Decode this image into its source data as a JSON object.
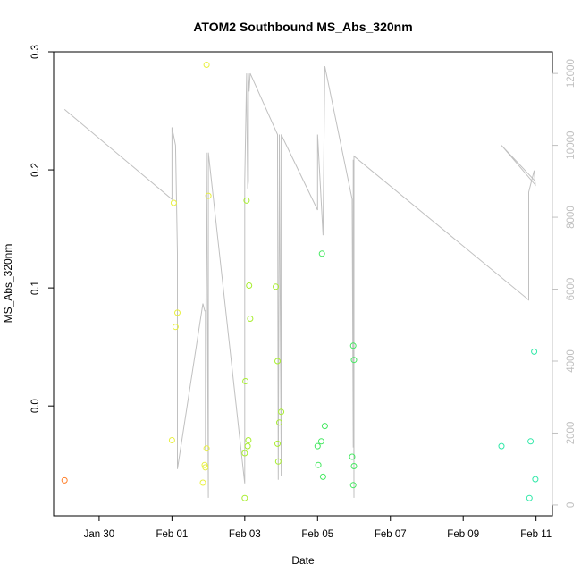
{
  "chart_data": {
    "type": "scatter",
    "title": "ATOM2 Southbound MS_Abs_320nm",
    "xlabel": "Date",
    "ylabel": "MS_Abs_320nm",
    "x_ticks": [
      "Jan 30",
      "Feb 01",
      "Feb 03",
      "Feb 05",
      "Feb 07",
      "Feb 09",
      "Feb 11"
    ],
    "x_tick_values": [
      0,
      2,
      4,
      6,
      8,
      10,
      12
    ],
    "xlim": [
      -1.25,
      12.45
    ],
    "y_ticks": [
      "0.0",
      "0.1",
      "0.2",
      "0.3"
    ],
    "y_tick_values": [
      0.0,
      0.1,
      0.2,
      0.3
    ],
    "ylim": [
      -0.093,
      0.3
    ],
    "y2_ticks": [
      "0",
      "2000",
      "4000",
      "6000",
      "8000",
      "10000",
      "12000"
    ],
    "y2_tick_values": [
      0,
      2000,
      4000,
      6000,
      8000,
      10000,
      12000
    ],
    "y2lim": [
      -300,
      12600
    ],
    "grid": false,
    "legend": "none",
    "points": [
      {
        "x": -0.95,
        "y": -0.063,
        "color": "#ff7f2a"
      },
      {
        "x": 2.0,
        "y": -0.029,
        "color": "#e8f040"
      },
      {
        "x": 2.05,
        "y": 0.172,
        "color": "#e8f040"
      },
      {
        "x": 2.1,
        "y": 0.067,
        "color": "#e8f040"
      },
      {
        "x": 2.15,
        "y": 0.079,
        "color": "#e8f040"
      },
      {
        "x": 2.85,
        "y": -0.065,
        "color": "#e8f040"
      },
      {
        "x": 2.9,
        "y": -0.05,
        "color": "#e8f040"
      },
      {
        "x": 2.92,
        "y": -0.052,
        "color": "#e8f040"
      },
      {
        "x": 2.95,
        "y": -0.036,
        "color": "#e8f040"
      },
      {
        "x": 2.95,
        "y": 0.289,
        "color": "#e8f040"
      },
      {
        "x": 3.0,
        "y": 0.178,
        "color": "#e8f040"
      },
      {
        "x": 4.0,
        "y": -0.078,
        "color": "#a8ee30"
      },
      {
        "x": 4.0,
        "y": -0.04,
        "color": "#a8ee30"
      },
      {
        "x": 4.02,
        "y": 0.021,
        "color": "#a8ee30"
      },
      {
        "x": 4.05,
        "y": 0.174,
        "color": "#a8ee30"
      },
      {
        "x": 4.08,
        "y": -0.034,
        "color": "#a8ee30"
      },
      {
        "x": 4.1,
        "y": -0.029,
        "color": "#a8ee30"
      },
      {
        "x": 4.12,
        "y": 0.102,
        "color": "#a8ee30"
      },
      {
        "x": 4.15,
        "y": 0.074,
        "color": "#a8ee30"
      },
      {
        "x": 4.85,
        "y": 0.101,
        "color": "#a8ee30"
      },
      {
        "x": 4.9,
        "y": -0.032,
        "color": "#a8ee30"
      },
      {
        "x": 4.9,
        "y": 0.038,
        "color": "#a8ee30"
      },
      {
        "x": 4.92,
        "y": -0.047,
        "color": "#a8ee30"
      },
      {
        "x": 4.95,
        "y": -0.014,
        "color": "#a8ee30"
      },
      {
        "x": 5.0,
        "y": -0.005,
        "color": "#a8ee30"
      },
      {
        "x": 6.0,
        "y": -0.034,
        "color": "#44e860"
      },
      {
        "x": 6.02,
        "y": -0.05,
        "color": "#44e860"
      },
      {
        "x": 6.1,
        "y": -0.03,
        "color": "#44e860"
      },
      {
        "x": 6.12,
        "y": 0.129,
        "color": "#44e860"
      },
      {
        "x": 6.15,
        "y": -0.06,
        "color": "#44e860"
      },
      {
        "x": 6.2,
        "y": -0.017,
        "color": "#44e860"
      },
      {
        "x": 6.95,
        "y": -0.043,
        "color": "#44e860"
      },
      {
        "x": 6.98,
        "y": -0.067,
        "color": "#44e860"
      },
      {
        "x": 6.98,
        "y": 0.051,
        "color": "#44e860"
      },
      {
        "x": 7.0,
        "y": 0.039,
        "color": "#44e860"
      },
      {
        "x": 7.0,
        "y": -0.051,
        "color": "#44e860"
      },
      {
        "x": 11.05,
        "y": -0.034,
        "color": "#30e8a8"
      },
      {
        "x": 11.82,
        "y": -0.078,
        "color": "#30e8a8"
      },
      {
        "x": 11.85,
        "y": -0.03,
        "color": "#30e8a8"
      },
      {
        "x": 11.95,
        "y": 0.046,
        "color": "#30e8a8"
      },
      {
        "x": 11.98,
        "y": -0.062,
        "color": "#30e8a8"
      }
    ],
    "secondary_line": {
      "axis": "right",
      "color": "#c0c0c0",
      "x": [
        -0.95,
        2.0,
        2.0,
        2.1,
        2.15,
        2.15,
        2.85,
        2.9,
        2.92,
        2.92,
        2.95,
        3.0,
        3.0,
        4.0,
        4.0,
        4.05,
        4.05,
        4.08,
        4.1,
        4.1,
        4.12,
        4.15,
        4.9,
        4.9,
        4.92,
        4.95,
        4.95,
        5.0,
        5.0,
        6.0,
        6.0,
        6.15,
        6.15,
        6.2,
        6.95,
        6.98,
        6.98,
        7.0,
        7.0,
        7.0,
        11.8,
        11.8,
        11.95,
        11.98,
        11.05,
        11.98
      ],
      "y": [
        11000,
        8500,
        10500,
        10000,
        7000,
        1000,
        5600,
        5400,
        5400,
        1500,
        9800,
        200,
        9800,
        600,
        9000,
        12000,
        11600,
        8800,
        9000,
        12000,
        11500,
        12000,
        10300,
        9800,
        700,
        9200,
        10300,
        800,
        10300,
        8200,
        10300,
        7500,
        7600,
        12200,
        8500,
        1600,
        9600,
        200,
        9400,
        9700,
        5700,
        8700,
        9300,
        8900,
        10000,
        9000
      ]
    }
  }
}
